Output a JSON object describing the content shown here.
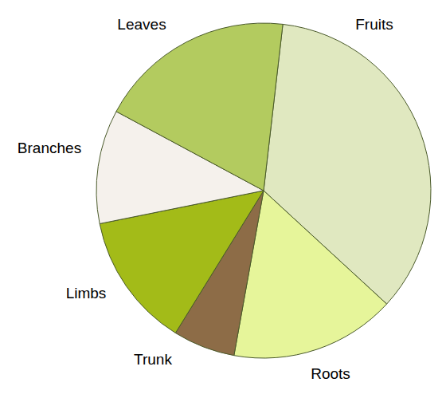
{
  "chart_data": {
    "type": "pie",
    "categories": [
      "Fruits",
      "Roots",
      "Trunk",
      "Limbs",
      "Branches",
      "Leaves"
    ],
    "values": [
      35,
      16,
      6,
      13,
      11,
      19
    ],
    "colors": [
      "#e0e8c0",
      "#e6f59a",
      "#8d6c47",
      "#a3bb18",
      "#f5f1ec",
      "#b3cb5f"
    ]
  }
}
